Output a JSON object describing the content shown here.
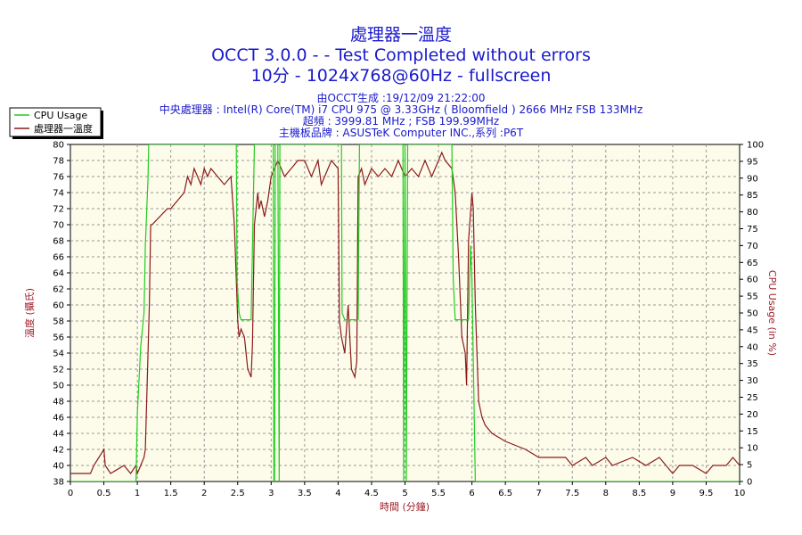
{
  "titles": [
    "處理器一溫度",
    "OCCT 3.0.0 -  - Test Completed without errors",
    "10分 - 1024x768@60Hz - fullscreen"
  ],
  "info_lines": [
    "由OCCT生成 :19/12/09 21:22:00",
    "中央處理器 : Intel(R) Core(TM) i7 CPU 975 @ 3.33GHz ( Bloomfield ) 2666 MHz FSB 133MHz",
    "超頻 : 3999.81 MHz ; FSB 199.99MHz",
    "主機板品牌 : ASUSTeK Computer INC.,系列 :P6T"
  ],
  "colors": {
    "temp": "#8b1a1a",
    "cpu": "#22cc22",
    "plot_bg": "#fdfcea",
    "grid": "#999999",
    "title": "#1a1acc"
  },
  "chart_data": {
    "type": "line",
    "xlabel": "時間 (分鐘)",
    "ylabel_left": "溫度 (攝氏)",
    "ylabel_right": "CPU Usage (in %)",
    "xlim": [
      0,
      10
    ],
    "ylim_left": [
      38,
      80
    ],
    "ylim_right": [
      0,
      100
    ],
    "x_ticks": [
      "0",
      "0.5",
      "1",
      "1.5",
      "2",
      "2.5",
      "3",
      "3.5",
      "4",
      "4.5",
      "5",
      "5.5",
      "6",
      "6.5",
      "7",
      "7.5",
      "8",
      "8.5",
      "9",
      "9.5",
      "10"
    ],
    "y_left_ticks": [
      "38",
      "40",
      "42",
      "44",
      "46",
      "48",
      "50",
      "52",
      "54",
      "56",
      "58",
      "60",
      "62",
      "64",
      "66",
      "68",
      "70",
      "72",
      "74",
      "76",
      "78",
      "80"
    ],
    "y_right_ticks": [
      "0",
      "5",
      "10",
      "15",
      "20",
      "25",
      "30",
      "35",
      "40",
      "45",
      "50",
      "55",
      "60",
      "65",
      "70",
      "75",
      "80",
      "85",
      "90",
      "95",
      "100"
    ],
    "grid": true,
    "legend_position": "top-left",
    "legend": [
      "CPU Usage",
      "處理器一溫度"
    ],
    "series": [
      {
        "name": "CPU Usage",
        "axis": "right",
        "x": [
          0,
          0.98,
          1.0,
          1.05,
          1.1,
          1.12,
          1.14,
          1.16,
          1.17,
          2.48,
          2.49,
          2.52,
          2.55,
          2.6,
          2.7,
          2.75,
          2.76,
          3.03,
          3.04,
          3.05,
          3.06,
          3.1,
          3.12,
          3.13,
          4.05,
          4.06,
          4.1,
          4.2,
          4.3,
          4.32,
          4.33,
          4.97,
          4.98,
          5.0,
          5.02,
          5.04,
          5.05,
          5.7,
          5.72,
          5.75,
          5.8,
          5.95,
          5.98,
          6.0,
          6.05,
          6.07,
          10
        ],
        "y": [
          0,
          0,
          20,
          40,
          50,
          70,
          80,
          90,
          100,
          100,
          60,
          50,
          48,
          48,
          48,
          100,
          100,
          100,
          0,
          0,
          100,
          100,
          0,
          100,
          100,
          50,
          48,
          48,
          48,
          100,
          100,
          100,
          0,
          100,
          0,
          100,
          100,
          100,
          60,
          48,
          48,
          48,
          70,
          60,
          0,
          0,
          0
        ]
      },
      {
        "name": "處理器一溫度",
        "axis": "left",
        "x": [
          0,
          0.3,
          0.35,
          0.5,
          0.52,
          0.6,
          0.8,
          0.9,
          0.98,
          1.0,
          1.05,
          1.1,
          1.12,
          1.18,
          1.2,
          1.22,
          1.45,
          1.5,
          1.7,
          1.75,
          1.8,
          1.85,
          1.9,
          1.95,
          2.0,
          2.05,
          2.1,
          2.2,
          2.3,
          2.4,
          2.45,
          2.5,
          2.52,
          2.55,
          2.6,
          2.65,
          2.7,
          2.72,
          2.75,
          2.8,
          2.82,
          2.85,
          2.9,
          2.95,
          3.0,
          3.1,
          3.2,
          3.4,
          3.5,
          3.6,
          3.7,
          3.75,
          3.85,
          3.9,
          4.0,
          4.02,
          4.05,
          4.1,
          4.15,
          4.2,
          4.25,
          4.28,
          4.3,
          4.35,
          4.4,
          4.5,
          4.6,
          4.7,
          4.8,
          4.9,
          5.0,
          5.1,
          5.2,
          5.3,
          5.4,
          5.5,
          5.55,
          5.6,
          5.7,
          5.75,
          5.8,
          5.85,
          5.9,
          5.92,
          5.95,
          6.0,
          6.02,
          6.05,
          6.1,
          6.15,
          6.2,
          6.3,
          6.5,
          6.8,
          7.0,
          7.4,
          7.5,
          7.7,
          7.8,
          8.0,
          8.1,
          8.4,
          8.6,
          8.8,
          9.0,
          9.1,
          9.3,
          9.5,
          9.6,
          9.8,
          9.9,
          10
        ],
        "y": [
          39,
          39,
          40,
          42,
          40,
          39,
          40,
          39,
          40,
          39,
          40,
          41,
          42,
          60,
          70,
          70,
          72,
          72,
          74,
          76,
          75,
          77,
          76,
          75,
          77,
          76,
          77,
          76,
          75,
          76,
          70,
          58,
          56,
          57,
          56,
          52,
          51,
          55,
          70,
          74,
          72,
          73,
          71,
          73,
          76,
          78,
          76,
          78,
          78,
          76,
          78,
          75,
          77,
          78,
          77,
          58,
          56,
          54,
          60,
          52,
          51,
          53,
          76,
          77,
          75,
          77,
          76,
          77,
          76,
          78,
          76,
          77,
          76,
          78,
          76,
          78,
          79,
          78,
          77,
          74,
          66,
          56,
          54,
          50,
          68,
          74,
          72,
          60,
          48,
          46,
          45,
          44,
          43,
          42,
          41,
          41,
          40,
          41,
          40,
          41,
          40,
          41,
          40,
          41,
          39,
          40,
          40,
          39,
          40,
          40,
          41,
          40
        ]
      }
    ]
  }
}
